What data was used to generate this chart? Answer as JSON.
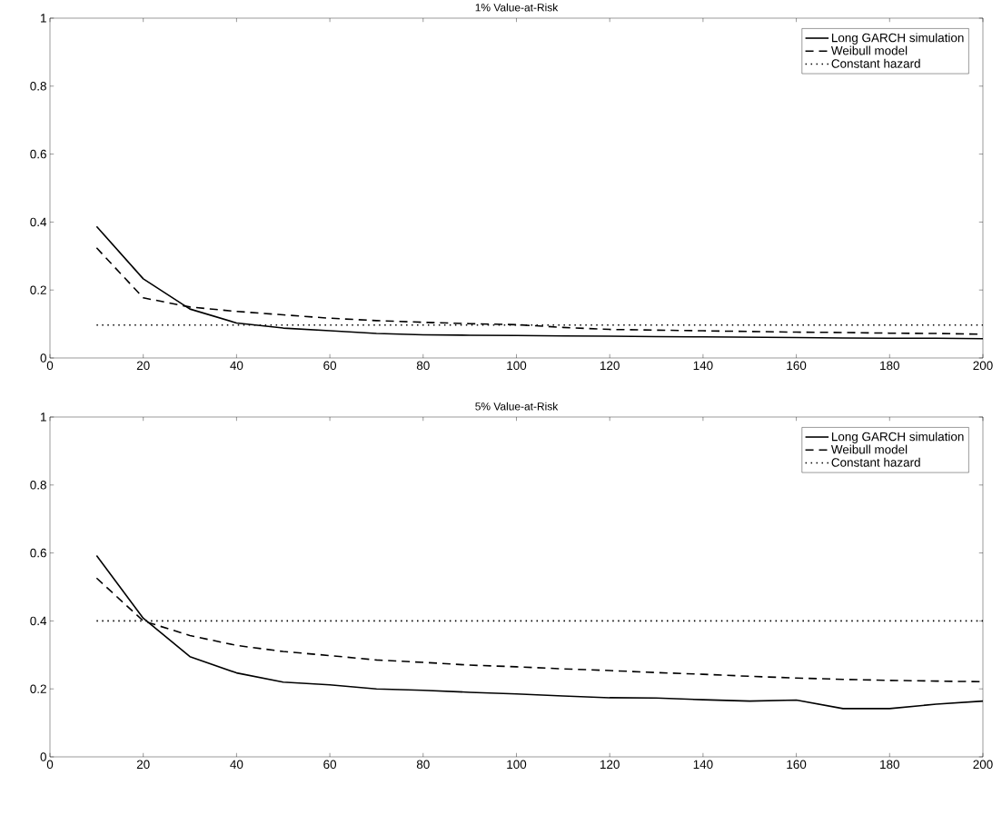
{
  "chart_data": [
    {
      "type": "line",
      "title": "1% Value-at-Risk",
      "xlim": [
        0,
        200
      ],
      "ylim": [
        0,
        1
      ],
      "xticks": [
        0,
        20,
        40,
        60,
        80,
        100,
        120,
        140,
        160,
        180,
        200
      ],
      "yticks": [
        0,
        0.2,
        0.4,
        0.6,
        0.8,
        1
      ],
      "legend": "top right",
      "x": [
        10,
        20,
        30,
        40,
        50,
        60,
        70,
        80,
        90,
        100,
        110,
        120,
        130,
        140,
        150,
        160,
        170,
        180,
        190,
        200
      ],
      "series": [
        {
          "name": "Long GARCH simulation",
          "color": "#000000",
          "line_style": "solid",
          "values": [
            0.387,
            0.233,
            0.144,
            0.103,
            0.088,
            0.08,
            0.072,
            0.068,
            0.067,
            0.066,
            0.065,
            0.064,
            0.063,
            0.062,
            0.061,
            0.06,
            0.059,
            0.058,
            0.058,
            0.057
          ]
        },
        {
          "name": "Weibull model",
          "color": "#000000",
          "line_style": "dashed",
          "values": [
            0.324,
            0.177,
            0.15,
            0.137,
            0.127,
            0.117,
            0.11,
            0.105,
            0.101,
            0.098,
            0.09,
            0.084,
            0.082,
            0.08,
            0.078,
            0.076,
            0.075,
            0.073,
            0.072,
            0.07
          ]
        },
        {
          "name": "Constant hazard",
          "color": "#000000",
          "line_style": "dotted",
          "values": [
            0.097,
            0.097,
            0.097,
            0.097,
            0.097,
            0.097,
            0.097,
            0.097,
            0.097,
            0.097,
            0.097,
            0.097,
            0.097,
            0.097,
            0.097,
            0.097,
            0.097,
            0.097,
            0.097,
            0.097
          ]
        }
      ]
    },
    {
      "type": "line",
      "title": "5% Value-at-Risk",
      "xlim": [
        0,
        200
      ],
      "ylim": [
        0,
        1
      ],
      "xticks": [
        0,
        20,
        40,
        60,
        80,
        100,
        120,
        140,
        160,
        180,
        200
      ],
      "yticks": [
        0,
        0.2,
        0.4,
        0.6,
        0.8,
        1
      ],
      "legend": "top right",
      "x": [
        10,
        20,
        30,
        40,
        50,
        60,
        70,
        80,
        90,
        100,
        110,
        120,
        130,
        140,
        150,
        160,
        170,
        180,
        190,
        200
      ],
      "series": [
        {
          "name": "Long GARCH simulation",
          "color": "#000000",
          "line_style": "solid",
          "values": [
            0.592,
            0.408,
            0.295,
            0.247,
            0.22,
            0.212,
            0.2,
            0.196,
            0.19,
            0.185,
            0.179,
            0.174,
            0.173,
            0.168,
            0.164,
            0.167,
            0.142,
            0.142,
            0.155,
            0.164
          ]
        },
        {
          "name": "Weibull model",
          "color": "#000000",
          "line_style": "dashed",
          "values": [
            0.526,
            0.4,
            0.357,
            0.328,
            0.31,
            0.298,
            0.285,
            0.278,
            0.27,
            0.265,
            0.259,
            0.254,
            0.248,
            0.243,
            0.237,
            0.232,
            0.228,
            0.225,
            0.223,
            0.221
          ]
        },
        {
          "name": "Constant hazard",
          "color": "#000000",
          "line_style": "dotted",
          "values": [
            0.4,
            0.4,
            0.4,
            0.4,
            0.4,
            0.4,
            0.4,
            0.4,
            0.4,
            0.4,
            0.4,
            0.4,
            0.4,
            0.4,
            0.4,
            0.4,
            0.4,
            0.4,
            0.4,
            0.4
          ]
        }
      ]
    }
  ]
}
